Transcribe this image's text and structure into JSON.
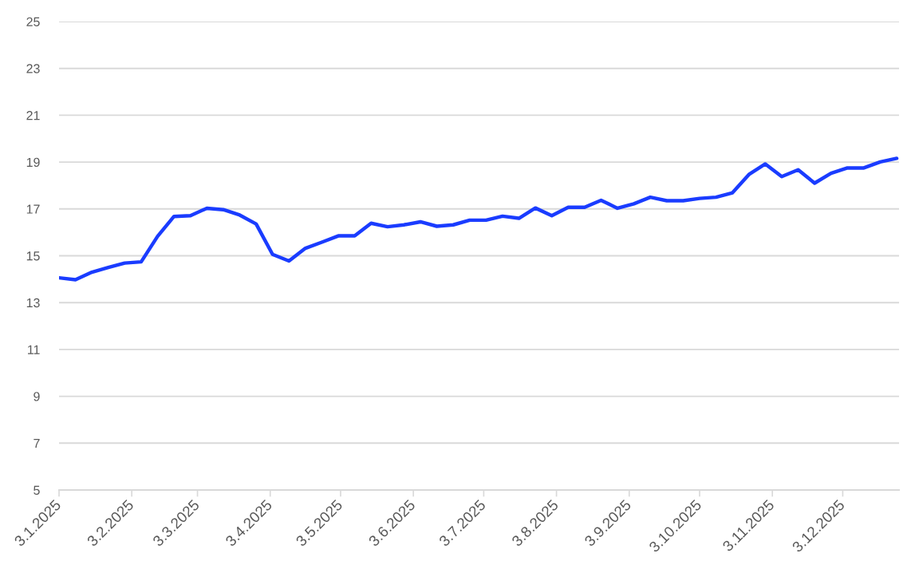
{
  "chart_data": {
    "type": "line",
    "x": [
      "2025-01-03",
      "2025-01-10",
      "2025-01-17",
      "2025-01-24",
      "2025-01-31",
      "2025-02-07",
      "2025-02-14",
      "2025-02-21",
      "2025-02-28",
      "2025-03-07",
      "2025-03-14",
      "2025-03-21",
      "2025-03-28",
      "2025-04-04",
      "2025-04-11",
      "2025-04-18",
      "2025-04-25",
      "2025-05-02",
      "2025-05-09",
      "2025-05-16",
      "2025-05-23",
      "2025-05-30",
      "2025-06-06",
      "2025-06-13",
      "2025-06-20",
      "2025-06-27",
      "2025-07-04",
      "2025-07-11",
      "2025-07-18",
      "2025-07-25",
      "2025-08-01",
      "2025-08-08",
      "2025-08-15",
      "2025-08-22",
      "2025-08-29",
      "2025-09-05",
      "2025-09-12",
      "2025-09-19",
      "2025-09-26",
      "2025-10-03",
      "2025-10-10",
      "2025-10-17",
      "2025-10-24",
      "2025-10-31",
      "2025-11-07",
      "2025-11-14",
      "2025-11-21",
      "2025-11-28",
      "2025-12-05",
      "2025-12-12",
      "2025-12-19",
      "2025-12-26"
    ],
    "series": [
      {
        "color": "#1a3cff",
        "values": [
          14.06,
          13.98,
          14.3,
          14.5,
          14.69,
          14.74,
          15.83,
          16.68,
          16.71,
          17.03,
          16.97,
          16.74,
          16.36,
          15.06,
          14.78,
          15.32,
          15.58,
          15.85,
          15.85,
          16.39,
          16.24,
          16.32,
          16.45,
          16.26,
          16.32,
          16.52,
          16.52,
          16.69,
          16.6,
          17.04,
          16.71,
          17.07,
          17.07,
          17.37,
          17.03,
          17.22,
          17.5,
          17.35,
          17.35,
          17.45,
          17.5,
          17.69,
          18.47,
          18.92,
          18.38,
          18.67,
          18.1,
          18.52,
          18.75,
          18.75,
          19.01,
          19.16
        ]
      }
    ],
    "xlim": [
      "2025-01-03",
      "2025-12-27"
    ],
    "xticks": [
      {
        "value": "2025-01-03",
        "label": "3.1.2025"
      },
      {
        "value": "2025-02-03",
        "label": "3.2.2025"
      },
      {
        "value": "2025-03-03",
        "label": "3.3.2025"
      },
      {
        "value": "2025-04-03",
        "label": "3.4.2025"
      },
      {
        "value": "2025-05-03",
        "label": "3.5.2025"
      },
      {
        "value": "2025-06-03",
        "label": "3.6.2025"
      },
      {
        "value": "2025-07-03",
        "label": "3.7.2025"
      },
      {
        "value": "2025-08-03",
        "label": "3.8.2025"
      },
      {
        "value": "2025-09-03",
        "label": "3.9.2025"
      },
      {
        "value": "2025-10-03",
        "label": "3.10.2025"
      },
      {
        "value": "2025-11-03",
        "label": "3.11.2025"
      },
      {
        "value": "2025-12-03",
        "label": "3.12.2025"
      }
    ],
    "ylim": [
      5,
      25
    ],
    "yticks": [
      5,
      7,
      9,
      11,
      13,
      15,
      17,
      19,
      21,
      23,
      25
    ],
    "grid": "y",
    "line_style": "solid"
  }
}
